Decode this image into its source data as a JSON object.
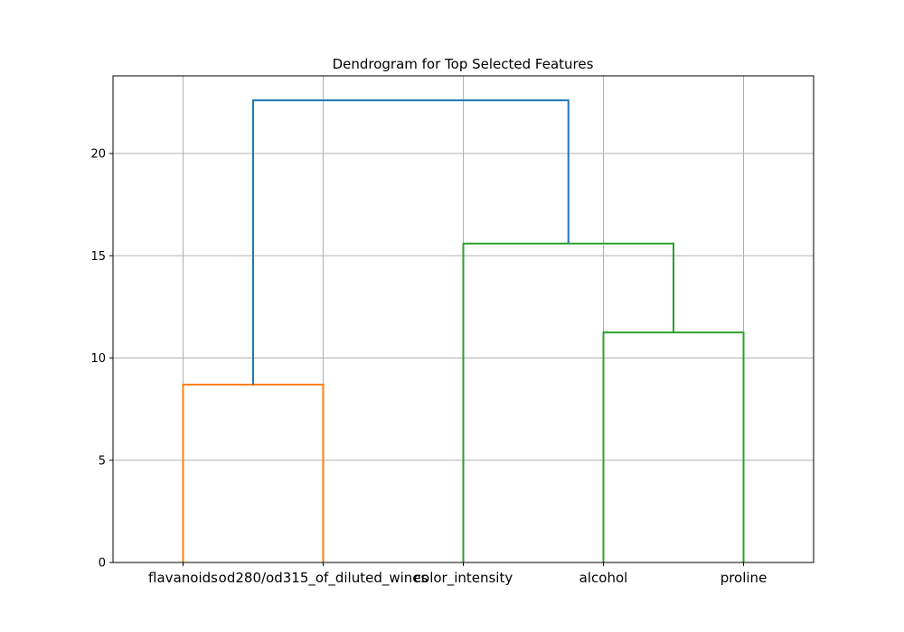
{
  "chart_data": {
    "type": "dendrogram",
    "title": "Dendrogram for Top Selected Features",
    "xlabel": "",
    "ylabel": "",
    "leaves": [
      "flavanoids",
      "od280/od315_of_diluted_wines",
      "color_intensity",
      "alcohol",
      "proline"
    ],
    "ylim": [
      0,
      23.8
    ],
    "yticks": [
      0,
      5,
      10,
      15,
      20
    ],
    "grid": true,
    "links": [
      {
        "x": [
          0,
          0,
          1,
          1
        ],
        "y": [
          0,
          8.7,
          8.7,
          0
        ],
        "color": "#ff7f0e"
      },
      {
        "x": [
          3,
          3,
          4,
          4
        ],
        "y": [
          0,
          11.25,
          11.25,
          0
        ],
        "color": "#2ca02c"
      },
      {
        "x": [
          2,
          2,
          3.5,
          3.5
        ],
        "y": [
          0,
          15.6,
          15.6,
          11.25
        ],
        "color": "#2ca02c"
      },
      {
        "x": [
          0.5,
          0.5,
          2.75,
          2.75
        ],
        "y": [
          8.7,
          22.6,
          22.6,
          15.6
        ],
        "color": "#1f77b4"
      }
    ]
  }
}
